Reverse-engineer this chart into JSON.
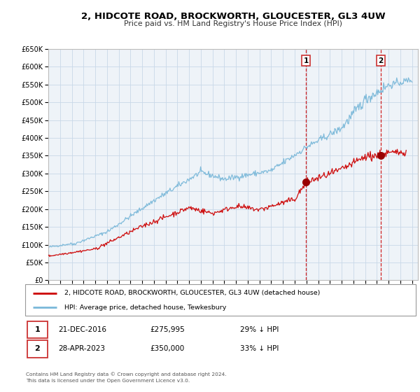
{
  "title": "2, HIDCOTE ROAD, BROCKWORTH, GLOUCESTER, GL3 4UW",
  "subtitle": "Price paid vs. HM Land Registry's House Price Index (HPI)",
  "ylim": [
    0,
    650000
  ],
  "yticks": [
    0,
    50000,
    100000,
    150000,
    200000,
    250000,
    300000,
    350000,
    400000,
    450000,
    500000,
    550000,
    600000,
    650000
  ],
  "xlim_start": 1995.0,
  "xlim_end": 2026.5,
  "hpi_color": "#7ab8d9",
  "price_color": "#cc0000",
  "marker_color": "#990000",
  "grid_color": "#c8d8e8",
  "bg_color": "#eef3f8",
  "sale1_x": 2016.97,
  "sale1_y": 275995,
  "sale2_x": 2023.33,
  "sale2_y": 350000,
  "vline_color": "#cc0000",
  "legend_label_red": "2, HIDCOTE ROAD, BROCKWORTH, GLOUCESTER, GL3 4UW (detached house)",
  "legend_label_blue": "HPI: Average price, detached house, Tewkesbury",
  "annotation1_date": "21-DEC-2016",
  "annotation1_price": "£275,995",
  "annotation1_pct": "29% ↓ HPI",
  "annotation2_date": "28-APR-2023",
  "annotation2_price": "£350,000",
  "annotation2_pct": "33% ↓ HPI",
  "footer1": "Contains HM Land Registry data © Crown copyright and database right 2024.",
  "footer2": "This data is licensed under the Open Government Licence v3.0."
}
